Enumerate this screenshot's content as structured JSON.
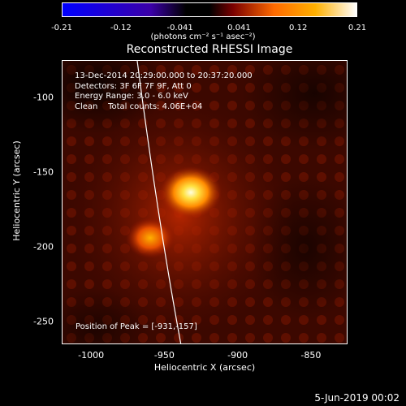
{
  "colorbar": {
    "tick_labels": [
      "-0.21",
      "-0.12",
      "-0.041",
      "0.041",
      "0.12",
      "0.21"
    ],
    "units": "(photons cm⁻² s⁻¹ asec⁻²)",
    "colors": [
      "#0000ff",
      "#3b00a8",
      "#ff6a00",
      "#ffb000",
      "#ffffff"
    ]
  },
  "plot": {
    "title": "Reconstructed RHESSI Image",
    "annotations": "13-Dec-2014 20:29:00.000 to 20:37:20.000\nDetectors: 3F 6F 7F 9F, Att 0\nEnergy Range: 3.0 - 6.0 keV\nClean    Total counts: 4.06E+04",
    "peak_label": "Position of Peak = [-931,-157]",
    "x_axis": {
      "label": "Heliocentric X (arcsec)",
      "ticks": [
        "-1000",
        "-950",
        "-900",
        "-850"
      ],
      "range": [
        -1020,
        -825
      ]
    },
    "y_axis": {
      "label": "Heliocentric Y (arcsec)",
      "ticks": [
        "-100",
        "-150",
        "-200",
        "-250"
      ],
      "range": [
        -265,
        -75
      ]
    }
  },
  "footer": {
    "date": "5-Jun-2019 00:02"
  }
}
